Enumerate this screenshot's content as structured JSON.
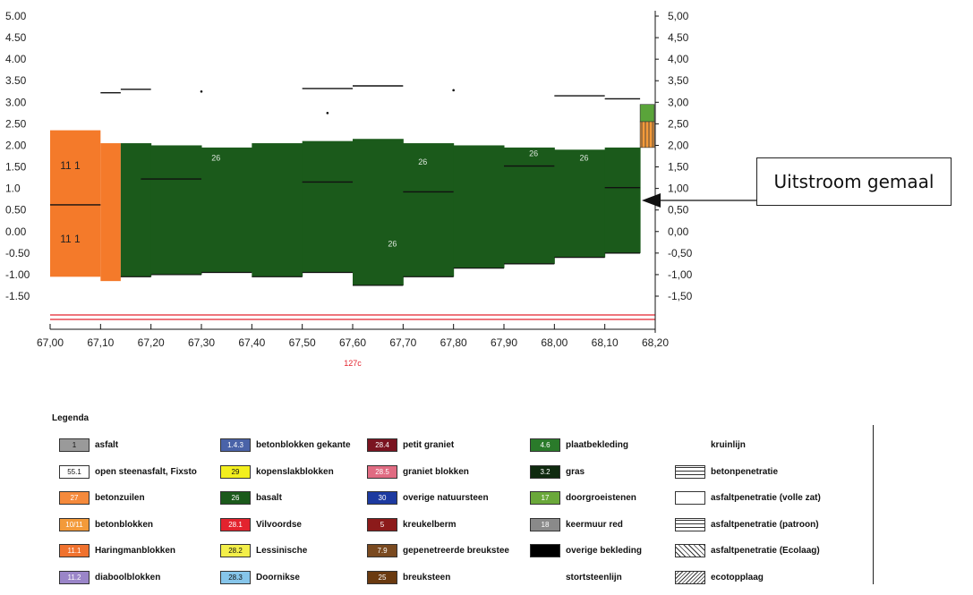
{
  "chart_data": {
    "type": "area",
    "title": "",
    "xlabel": "",
    "ylabel": "",
    "x_ticks": [
      "67,00",
      "67,10",
      "67,20",
      "67,30",
      "67,40",
      "67,50",
      "67,60",
      "67,70",
      "67,80",
      "67,90",
      "68,00",
      "68,10",
      "68,20"
    ],
    "y_ticks_left": [
      "5.00",
      "4.50",
      "4.00",
      "3.50",
      "3.00",
      "2.50",
      "2.00",
      "1.50",
      "1.0",
      "0.50",
      "0.00",
      "-0.50",
      "-1.00",
      "-1.50"
    ],
    "y_ticks_right": [
      "5,00",
      "4,50",
      "4,00",
      "3,50",
      "3,00",
      "2,50",
      "2,00",
      "1,50",
      "1,00",
      "0,50",
      "0,00",
      "-0,50",
      "-1,00",
      "-1,50"
    ],
    "xlim": [
      67.0,
      68.2
    ],
    "ylim": [
      -1.5,
      5.0
    ],
    "orange_block": {
      "x": [
        67.0,
        67.1
      ],
      "top": 2.35,
      "bottom": -1.05,
      "labels": [
        "11 1",
        "11 1"
      ]
    },
    "orange_step": {
      "x": [
        67.1,
        67.14
      ],
      "top": 2.05,
      "bottom": -1.15
    },
    "green_segments": [
      {
        "x0": 67.14,
        "x1": 67.2,
        "top": 2.05,
        "bottom": -1.05
      },
      {
        "x0": 67.2,
        "x1": 67.3,
        "top": 2.0,
        "bottom": -1.0
      },
      {
        "x0": 67.3,
        "x1": 67.4,
        "top": 1.95,
        "bottom": -0.95
      },
      {
        "x0": 67.4,
        "x1": 67.5,
        "top": 2.05,
        "bottom": -1.05
      },
      {
        "x0": 67.5,
        "x1": 67.6,
        "top": 2.1,
        "bottom": -0.95
      },
      {
        "x0": 67.6,
        "x1": 67.7,
        "top": 2.15,
        "bottom": -1.25
      },
      {
        "x0": 67.7,
        "x1": 67.8,
        "top": 2.05,
        "bottom": -1.05
      },
      {
        "x0": 67.8,
        "x1": 67.9,
        "top": 2.0,
        "bottom": -0.85
      },
      {
        "x0": 67.9,
        "x1": 68.0,
        "top": 1.95,
        "bottom": -0.75
      },
      {
        "x0": 68.0,
        "x1": 68.1,
        "top": 1.9,
        "bottom": -0.6
      },
      {
        "x0": 68.1,
        "x1": 68.17,
        "top": 1.95,
        "bottom": -0.5
      }
    ],
    "green_labels": [
      {
        "x": 67.32,
        "y": 1.65,
        "text": "26"
      },
      {
        "x": 67.73,
        "y": 1.55,
        "text": "26"
      },
      {
        "x": 67.95,
        "y": 1.75,
        "text": "26"
      },
      {
        "x": 68.05,
        "y": 1.65,
        "text": "26"
      },
      {
        "x": 67.67,
        "y": -0.35,
        "text": "26"
      }
    ],
    "black_lines": [
      {
        "x0": 67.0,
        "x1": 67.1,
        "y": 0.62
      },
      {
        "x0": 67.18,
        "x1": 67.3,
        "y": 1.22
      },
      {
        "x0": 67.5,
        "x1": 67.6,
        "y": 1.15
      },
      {
        "x0": 67.7,
        "x1": 67.8,
        "y": 0.92
      },
      {
        "x0": 67.9,
        "x1": 68.0,
        "y": 1.52
      },
      {
        "x0": 68.1,
        "x1": 68.17,
        "y": 1.02
      },
      {
        "x0": 67.1,
        "x1": 67.14,
        "y": 3.22
      },
      {
        "x0": 67.14,
        "x1": 67.2,
        "y": 3.3
      },
      {
        "x0": 67.5,
        "x1": 67.6,
        "y": 3.32
      },
      {
        "x0": 67.6,
        "x1": 67.7,
        "y": 3.38
      },
      {
        "x0": 68.0,
        "x1": 68.1,
        "y": 3.15
      },
      {
        "x0": 68.1,
        "x1": 68.17,
        "y": 3.08
      }
    ],
    "top_dots": [
      {
        "x": 67.3,
        "y": 3.25
      },
      {
        "x": 67.8,
        "y": 3.28
      },
      {
        "x": 67.55,
        "y": 2.75
      }
    ],
    "structure_green": {
      "x": [
        68.17,
        68.2
      ],
      "top": 2.95,
      "bottom": 2.55
    },
    "structure_orange": {
      "x": [
        68.17,
        68.2
      ],
      "top": 2.55,
      "bottom": 1.95
    },
    "bottom_label": "127c",
    "annotation": "Uitstroom gemaal"
  },
  "legend": {
    "title": "Legenda",
    "columns": [
      [
        {
          "code": "1",
          "color": "#9a9a9a",
          "label": "asfalt"
        },
        {
          "code": "55.1",
          "color": "#ffffff",
          "label": "open steenasfalt, Fixsto"
        },
        {
          "code": "27",
          "color": "#f58a3c",
          "label": "betonzuilen"
        },
        {
          "code": "10/11",
          "color": "#f39a3a",
          "label": "betonblokken"
        },
        {
          "code": "11.1",
          "color": "#f0722e",
          "label": "Haringmanblokken"
        },
        {
          "code": "11.2",
          "color": "#9a85c8",
          "label": "diaboolblokken"
        }
      ],
      [
        {
          "code": "1.4.3",
          "color": "#4a63a8",
          "label": "betonblokken gekante"
        },
        {
          "code": "29",
          "color": "#f3ef1e",
          "label": "kopenslakblokken"
        },
        {
          "code": "26",
          "color": "#1b5a1b",
          "label": "basalt"
        },
        {
          "code": "28.1",
          "color": "#e3232e",
          "label": "Vilvoordse"
        },
        {
          "code": "28.2",
          "color": "#f3ef4a",
          "label": "Lessinische"
        },
        {
          "code": "28.3",
          "color": "#86c5ea",
          "label": "Doornikse"
        }
      ],
      [
        {
          "code": "28.4",
          "color": "#7a1420",
          "label": "petit graniet"
        },
        {
          "code": "28.5",
          "color": "#e06b82",
          "label": "graniet blokken"
        },
        {
          "code": "30",
          "color": "#1d3aa0",
          "label": "overige natuursteen"
        },
        {
          "code": "5",
          "color": "#8c1a1a",
          "label": "kreukelberm"
        },
        {
          "code": "7.9",
          "color": "#7a4a20",
          "label": "gepenetreerde breukstee"
        },
        {
          "code": "25",
          "color": "#6a3a10",
          "label": "breuksteen"
        }
      ],
      [
        {
          "code": "4.6",
          "color": "#2a7a2a",
          "label": "plaatbekleding"
        },
        {
          "code": "3.2",
          "color": "#0f2a0f",
          "label": "gras"
        },
        {
          "code": "17",
          "color": "#6aa83a",
          "label": "doorgroeistenen"
        },
        {
          "code": "18",
          "color": "#8a8a8a",
          "label": "keermuur red"
        },
        {
          "code": "",
          "color": "#000000",
          "label": "overige bekleding"
        },
        {
          "code": "",
          "color": "none",
          "label": "stortsteenlijn"
        }
      ],
      [
        {
          "code": "",
          "color": "none",
          "label": "kruinlijn"
        },
        {
          "code": "",
          "color": "#ffffff",
          "label": "betonpenetratie"
        },
        {
          "code": "",
          "color": "#ffffff",
          "label": "asfaltpenetratie (volle zat)"
        },
        {
          "code": "",
          "color": "#ffffff",
          "label": "asfaltpenetratie (patroon)"
        },
        {
          "code": "",
          "color": "#ffffff",
          "label": "asfaltpenetratie (Ecolaag)"
        },
        {
          "code": "",
          "color": "#ffffff",
          "label": "ecotopplaag"
        }
      ]
    ]
  }
}
